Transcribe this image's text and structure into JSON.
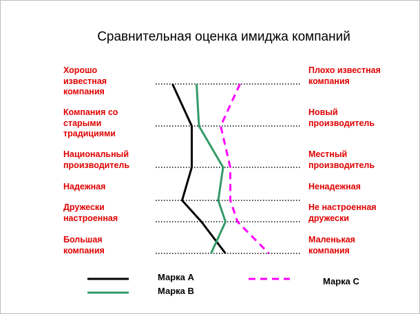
{
  "chart_data": {
    "type": "profile",
    "title": "Сравнительная оценка имиджа компаний",
    "left_labels": [
      "Хорошо известная компания",
      "Компания со старыми традициями",
      "Национальный производитель",
      "Надежная",
      "Дружески настроенная",
      "Большая компания"
    ],
    "right_labels": [
      "Плохо известная компания",
      "Новый производитель",
      "Местный производитель",
      "Ненадежная",
      "Не настроенная дружески",
      "Маленькая компания"
    ],
    "xlim": [
      1,
      7
    ],
    "series": [
      {
        "name": "Марка A",
        "color": "#000000",
        "dash": "solid",
        "values": [
          1.7,
          2.5,
          2.5,
          2.1,
          2.9,
          3.9
        ]
      },
      {
        "name": "Марка B",
        "color": "#339966",
        "dash": "solid",
        "values": [
          2.7,
          2.8,
          3.8,
          3.6,
          3.9,
          3.3
        ]
      },
      {
        "name": "Марка C",
        "color": "#ff00ff",
        "dash": "dashed",
        "values": [
          4.5,
          3.7,
          4.1,
          4.1,
          4.4,
          5.7
        ]
      }
    ]
  }
}
